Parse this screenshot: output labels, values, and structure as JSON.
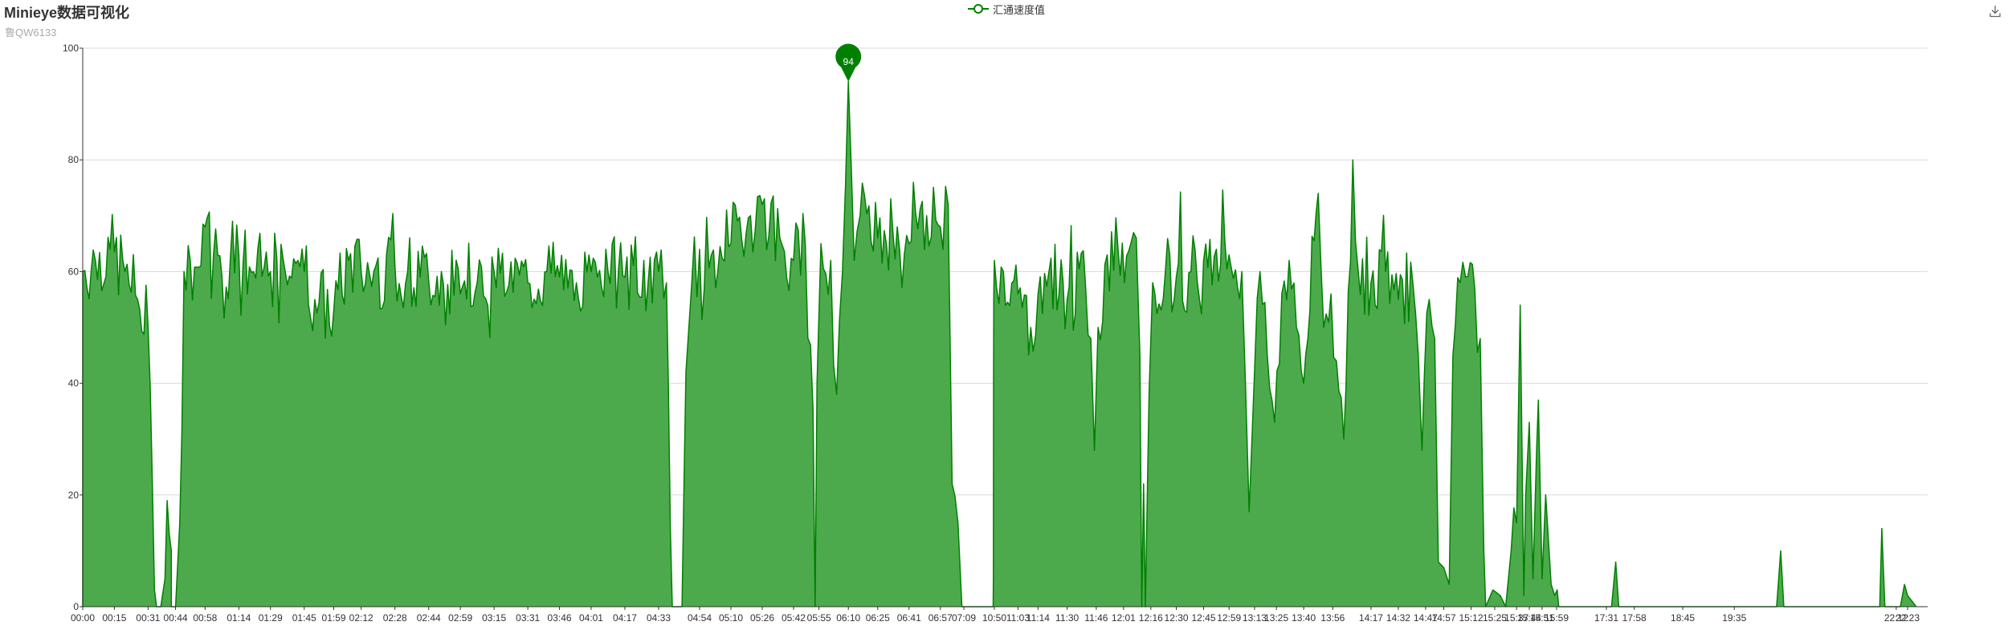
{
  "title": "Minieye数据可视化",
  "subtitle": "鲁QW6133",
  "toolbox": {
    "save_icon": "download-icon"
  },
  "colors": {
    "series": "#008000",
    "area": "#4caa4c",
    "grid": "#d9d9d9",
    "axis": "#333333"
  },
  "chart_data": {
    "type": "area",
    "legend": {
      "entries": [
        "汇通速度值"
      ],
      "position": "top-center"
    },
    "series": [
      {
        "name": "汇通速度值",
        "smooth": true,
        "filled": true,
        "peak": {
          "x": "06:10",
          "value": 94,
          "label": "94"
        },
        "profile": [
          [
            "00:00",
            0
          ],
          [
            "00:00",
            60
          ],
          [
            "00:06",
            62
          ],
          [
            "00:13",
            64
          ],
          [
            "00:20",
            60
          ],
          [
            "00:26",
            55
          ],
          [
            "00:31",
            50
          ],
          [
            "00:33",
            22
          ],
          [
            "00:34",
            3
          ],
          [
            "00:35",
            0
          ],
          [
            "00:37",
            0
          ],
          [
            "00:39",
            5
          ],
          [
            "00:40",
            19
          ],
          [
            "00:41",
            13
          ],
          [
            "00:42",
            10
          ],
          [
            "00:42",
            0
          ],
          [
            "00:44",
            0
          ],
          [
            "00:46",
            15
          ],
          [
            "00:48",
            60
          ],
          [
            "00:51",
            62
          ],
          [
            "00:56",
            61
          ],
          [
            "00:58",
            68
          ],
          [
            "01:02",
            63
          ],
          [
            "01:14",
            63
          ],
          [
            "01:21",
            60
          ],
          [
            "01:29",
            60
          ],
          [
            "01:36",
            60
          ],
          [
            "01:42",
            62
          ],
          [
            "01:45",
            60
          ],
          [
            "01:50",
            55
          ],
          [
            "01:59",
            53
          ],
          [
            "02:06",
            62
          ],
          [
            "02:12",
            60
          ],
          [
            "02:18",
            60
          ],
          [
            "02:28",
            61
          ],
          [
            "02:40",
            59
          ],
          [
            "02:50",
            60
          ],
          [
            "02:59",
            56
          ],
          [
            "03:07",
            58
          ],
          [
            "03:15",
            60
          ],
          [
            "03:31",
            58
          ],
          [
            "03:40",
            60
          ],
          [
            "03:46",
            59
          ],
          [
            "03:54",
            58
          ],
          [
            "04:01",
            60
          ],
          [
            "04:09",
            60
          ],
          [
            "04:17",
            59
          ],
          [
            "04:28",
            58
          ],
          [
            "04:33",
            60
          ],
          [
            "04:37",
            58
          ],
          [
            "04:38",
            40
          ],
          [
            "04:39",
            14
          ],
          [
            "04:40",
            0
          ],
          [
            "04:45",
            0
          ],
          [
            "04:46",
            22
          ],
          [
            "04:47",
            42
          ],
          [
            "04:50",
            58
          ],
          [
            "04:54",
            64
          ],
          [
            "05:00",
            63
          ],
          [
            "05:10",
            65
          ],
          [
            "05:20",
            70
          ],
          [
            "05:26",
            72
          ],
          [
            "05:35",
            66
          ],
          [
            "05:42",
            62
          ],
          [
            "05:48",
            65
          ],
          [
            "05:52",
            35
          ],
          [
            "05:53",
            0
          ],
          [
            "05:54",
            40
          ],
          [
            "05:56",
            65
          ],
          [
            "06:01",
            62
          ],
          [
            "06:04",
            38
          ],
          [
            "06:07",
            60
          ],
          [
            "06:10",
            94
          ],
          [
            "06:13",
            62
          ],
          [
            "06:16",
            70
          ],
          [
            "06:25",
            66
          ],
          [
            "06:35",
            68
          ],
          [
            "06:41",
            65
          ],
          [
            "06:50",
            70
          ],
          [
            "06:57",
            68
          ],
          [
            "07:01",
            72
          ],
          [
            "07:03",
            22
          ],
          [
            "07:06",
            15
          ],
          [
            "07:08",
            0
          ],
          [
            "10:41",
            0
          ],
          [
            "10:43",
            6
          ],
          [
            "10:44",
            40
          ],
          [
            "10:46",
            56
          ],
          [
            "10:50",
            62
          ],
          [
            "10:55",
            60
          ],
          [
            "11:03",
            56
          ],
          [
            "11:10",
            50
          ],
          [
            "11:14",
            56
          ],
          [
            "11:20",
            60
          ],
          [
            "11:30",
            55
          ],
          [
            "11:40",
            58
          ],
          [
            "11:43",
            48
          ],
          [
            "11:45",
            28
          ],
          [
            "11:47",
            50
          ],
          [
            "11:52",
            63
          ],
          [
            "11:58",
            64
          ],
          [
            "12:05",
            65
          ],
          [
            "12:08",
            66
          ],
          [
            "12:10",
            45
          ],
          [
            "12:11",
            0
          ],
          [
            "12:12",
            22
          ],
          [
            "12:13",
            0
          ],
          [
            "12:15",
            38
          ],
          [
            "12:17",
            58
          ],
          [
            "12:24",
            60
          ],
          [
            "12:30",
            59
          ],
          [
            "12:38",
            60
          ],
          [
            "12:45",
            62
          ],
          [
            "12:52",
            64
          ],
          [
            "12:59",
            63
          ],
          [
            "13:06",
            60
          ],
          [
            "13:08",
            40
          ],
          [
            "13:10",
            17
          ],
          [
            "13:13",
            42
          ],
          [
            "13:16",
            60
          ],
          [
            "13:20",
            45
          ],
          [
            "13:24",
            33
          ],
          [
            "13:28",
            56
          ],
          [
            "13:32",
            62
          ],
          [
            "13:36",
            50
          ],
          [
            "13:40",
            40
          ],
          [
            "13:48",
            74
          ],
          [
            "13:51",
            50
          ],
          [
            "13:55",
            56
          ],
          [
            "13:58",
            44
          ],
          [
            "14:02",
            30
          ],
          [
            "14:07",
            80
          ],
          [
            "14:10",
            60
          ],
          [
            "14:17",
            58
          ],
          [
            "14:25",
            60
          ],
          [
            "14:32",
            55
          ],
          [
            "14:40",
            58
          ],
          [
            "14:43",
            45
          ],
          [
            "14:45",
            28
          ],
          [
            "14:49",
            55
          ],
          [
            "14:52",
            48
          ],
          [
            "14:54",
            8
          ],
          [
            "14:57",
            7
          ],
          [
            "15:00",
            4
          ],
          [
            "15:02",
            45
          ],
          [
            "15:06",
            58
          ],
          [
            "15:09",
            59
          ],
          [
            "15:14",
            57
          ],
          [
            "15:17",
            48
          ],
          [
            "15:19",
            10
          ],
          [
            "15:20",
            0
          ],
          [
            "15:24",
            3
          ],
          [
            "15:28",
            2
          ],
          [
            "15:31",
            0
          ],
          [
            "15:34",
            10
          ],
          [
            "15:37",
            15
          ],
          [
            "15:39",
            54
          ],
          [
            "15:41",
            2
          ],
          [
            "15:42",
            20
          ],
          [
            "15:44",
            33
          ],
          [
            "15:46",
            5
          ],
          [
            "15:48",
            28
          ],
          [
            "15:49",
            37
          ],
          [
            "15:51",
            5
          ],
          [
            "15:53",
            20
          ],
          [
            "15:56",
            4
          ],
          [
            "15:58",
            2
          ],
          [
            "16:00",
            3
          ],
          [
            "16:03",
            0
          ],
          [
            "17:36",
            0
          ],
          [
            "17:40",
            8
          ],
          [
            "17:43",
            0
          ],
          [
            "20:16",
            0
          ],
          [
            "20:20",
            10
          ],
          [
            "20:23",
            0
          ],
          [
            "21:56",
            0
          ],
          [
            "21:58",
            14
          ],
          [
            "22:01",
            0
          ],
          [
            "22:16",
            0
          ],
          [
            "22:20",
            4
          ],
          [
            "22:23",
            2
          ],
          [
            "22:26",
            0
          ]
        ]
      }
    ],
    "x_axis": {
      "ticks": [
        "00:00",
        "00:15",
        "00:31",
        "00:44",
        "00:58",
        "01:14",
        "01:29",
        "01:45",
        "01:59",
        "02:12",
        "02:28",
        "02:44",
        "02:59",
        "03:15",
        "03:31",
        "03:46",
        "04:01",
        "04:17",
        "04:33",
        "04:54",
        "05:10",
        "05:26",
        "05:42",
        "05:55",
        "06:10",
        "06:25",
        "06:41",
        "06:57",
        "07:09",
        "10:50",
        "11:03",
        "11:14",
        "11:30",
        "11:46",
        "12:01",
        "12:16",
        "12:30",
        "12:45",
        "12:59",
        "13:13",
        "13:25",
        "13:40",
        "13:56",
        "14:17",
        "14:32",
        "14:47",
        "14:57",
        "15:12",
        "15:25",
        "15:37",
        "15:44",
        "15:51",
        "15:59",
        "17:31",
        "17:58",
        "18:45",
        "19:35",
        "22:12",
        "22:23"
      ]
    },
    "y_axis": {
      "min": 0,
      "max": 100,
      "ticks": [
        0,
        20,
        40,
        60,
        80,
        100
      ]
    },
    "grid": true
  }
}
